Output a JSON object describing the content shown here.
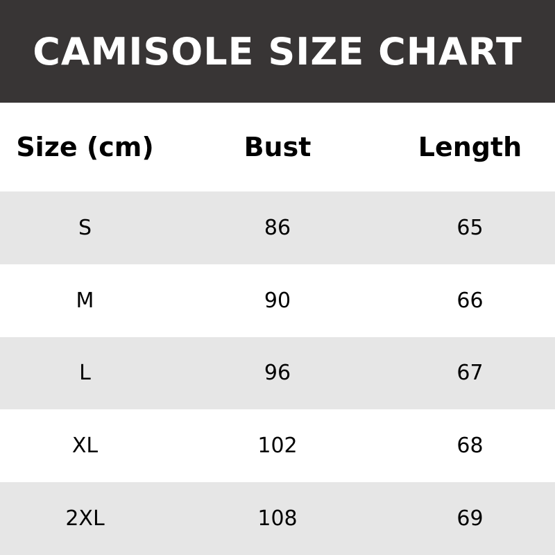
{
  "title": "CAMISOLE SIZE CHART",
  "colors": {
    "banner": "#383535",
    "stripe": "#e6e6e6"
  },
  "table": {
    "headers": [
      "Size (cm)",
      "Bust",
      "Length"
    ],
    "rows": [
      [
        "S",
        "86",
        "65"
      ],
      [
        "M",
        "90",
        "66"
      ],
      [
        "L",
        "96",
        "67"
      ],
      [
        "XL",
        "102",
        "68"
      ],
      [
        "2XL",
        "108",
        "69"
      ]
    ]
  }
}
